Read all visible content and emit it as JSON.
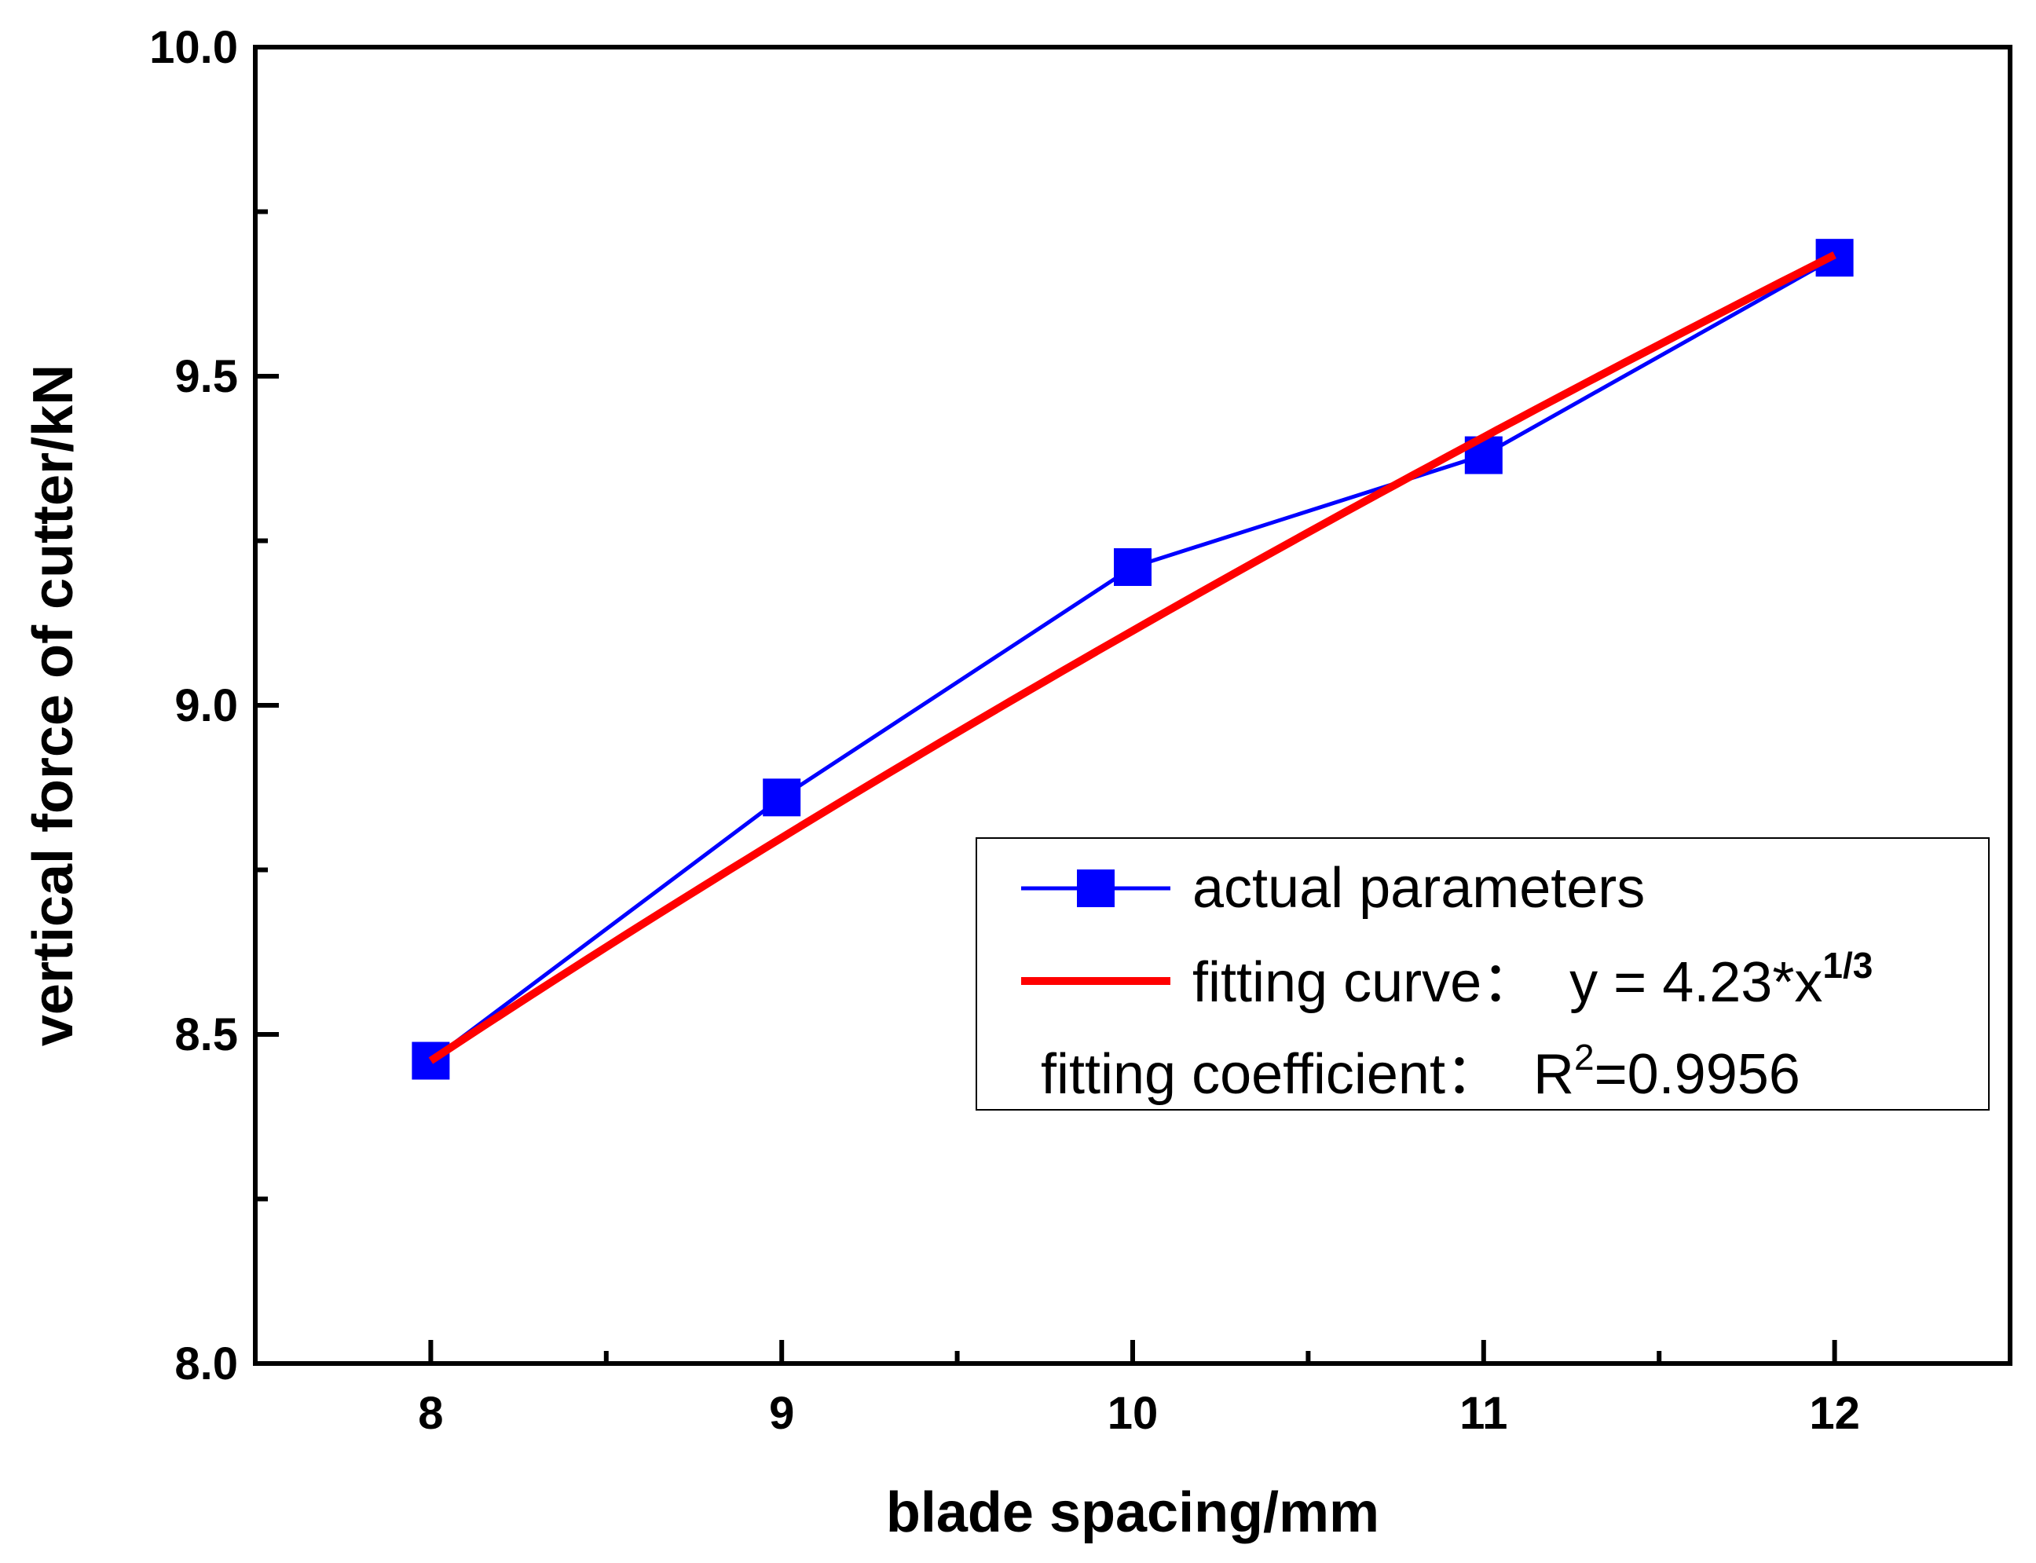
{
  "chart_data": {
    "type": "line",
    "xlabel": "blade spacing/mm",
    "ylabel": "vertical force of cutter/kN",
    "xlim": [
      7.5,
      12.5
    ],
    "ylim": [
      8.0,
      10.0
    ],
    "xticks": [
      8,
      9,
      10,
      11,
      12
    ],
    "xtick_labels": [
      "8",
      "9",
      "10",
      "11",
      "12"
    ],
    "yticks": [
      8.0,
      8.5,
      9.0,
      9.5,
      10.0
    ],
    "ytick_labels": [
      "8.0",
      "8.5",
      "9.0",
      "9.5",
      "10.0"
    ],
    "x_minor_step": 0.5,
    "y_minor_step": 0.25,
    "series": [
      {
        "name": "actual parameters",
        "kind": "line-marker",
        "marker": "square",
        "color": "#0000ff",
        "x": [
          8,
          9,
          10,
          11,
          12
        ],
        "y": [
          8.46,
          8.86,
          9.21,
          9.38,
          9.68
        ]
      },
      {
        "name": "fitting curve",
        "kind": "curve",
        "color": "#ff0000",
        "formula": "y = 4.23*x^(1/3)",
        "coefficient": 4.23,
        "exponent": 0.3333333333,
        "x_range": [
          8,
          12
        ]
      }
    ],
    "legend": {
      "position": "bottom-right",
      "entries": [
        {
          "label": "actual parameters"
        },
        {
          "label": "fitting curve：  y = 4.23*x",
          "superscript": "1/3"
        },
        {
          "label_pre": "fitting coefficient：  R",
          "superscript": "2",
          "label_post": "=0.9956"
        }
      ]
    }
  }
}
